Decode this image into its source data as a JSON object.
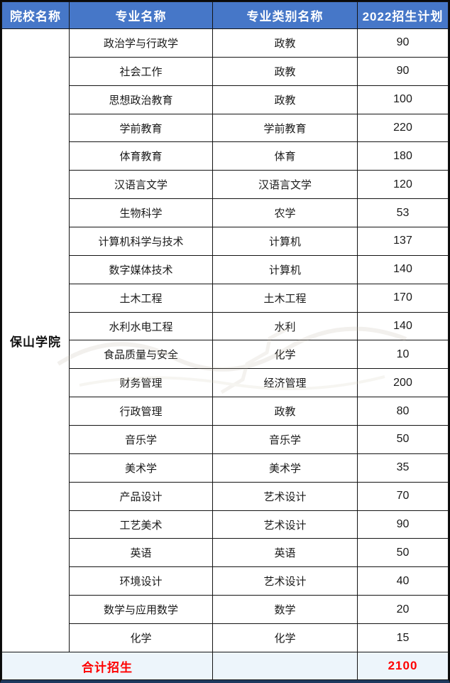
{
  "chart_data": {
    "type": "table",
    "columns": [
      "院校名称",
      "专业名称",
      "专业类别名称",
      "2022招生计划"
    ],
    "college": "保山学院",
    "rows": [
      {
        "major": "政治学与行政学",
        "category": "政教",
        "plan": "90"
      },
      {
        "major": "社会工作",
        "category": "政教",
        "plan": "90"
      },
      {
        "major": "思想政治教育",
        "category": "政教",
        "plan": "100"
      },
      {
        "major": "学前教育",
        "category": "学前教育",
        "plan": "220"
      },
      {
        "major": "体育教育",
        "category": "体育",
        "plan": "180"
      },
      {
        "major": "汉语言文学",
        "category": "汉语言文学",
        "plan": "120"
      },
      {
        "major": "生物科学",
        "category": "农学",
        "plan": "53"
      },
      {
        "major": "计算机科学与技术",
        "category": "计算机",
        "plan": "137"
      },
      {
        "major": "数字媒体技术",
        "category": "计算机",
        "plan": "140"
      },
      {
        "major": "土木工程",
        "category": "土木工程",
        "plan": "170"
      },
      {
        "major": "水利水电工程",
        "category": "水利",
        "plan": "140"
      },
      {
        "major": "食品质量与安全",
        "category": "化学",
        "plan": "10"
      },
      {
        "major": "财务管理",
        "category": "经济管理",
        "plan": "200"
      },
      {
        "major": "行政管理",
        "category": "政教",
        "plan": "80"
      },
      {
        "major": "音乐学",
        "category": "音乐学",
        "plan": "50"
      },
      {
        "major": "美术学",
        "category": "美术学",
        "plan": "35"
      },
      {
        "major": "产品设计",
        "category": "艺术设计",
        "plan": "70"
      },
      {
        "major": "工艺美术",
        "category": "艺术设计",
        "plan": "90"
      },
      {
        "major": "英语",
        "category": "英语",
        "plan": "50"
      },
      {
        "major": "环境设计",
        "category": "艺术设计",
        "plan": "40"
      },
      {
        "major": "数学与应用数学",
        "category": "数学",
        "plan": "20"
      },
      {
        "major": "化学",
        "category": "化学",
        "plan": "15"
      }
    ],
    "footer": {
      "label": "合计招生",
      "total": "2100"
    }
  },
  "colors": {
    "header_bg": "#4677c8",
    "header_text": "#ffffff",
    "body_text": "#1a1a1a",
    "total_red": "#fe0000",
    "footer_bg": "#edf5fb",
    "bottom_border": "#1e3a5f"
  }
}
